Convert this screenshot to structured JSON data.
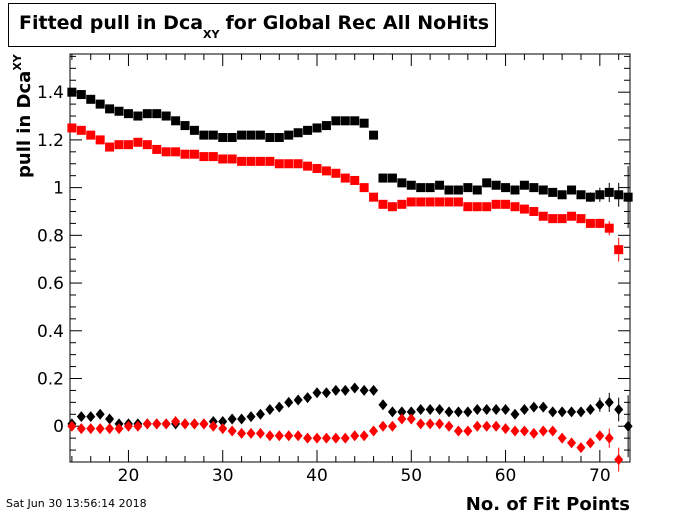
{
  "title": {
    "main": "Fitted pull in Dca",
    "sub": "XY",
    "rest": "for Global Rec All NoHits"
  },
  "timestamp": "Sat Jun 30 13:56:14 2018",
  "chart_data": {
    "type": "scatter",
    "title": "Fitted pull in Dca_XY for Global Rec All NoHits",
    "xlabel": "No. of Fit Points",
    "ylabel": "pull in Dca_XY",
    "xlim": [
      13.8,
      73.2
    ],
    "ylim": [
      -0.15,
      1.56
    ],
    "x_ticks": [
      20,
      30,
      40,
      50,
      60,
      70
    ],
    "y_ticks": [
      0,
      0.2,
      0.4,
      0.6,
      0.8,
      1,
      1.2,
      1.4
    ],
    "grid": false,
    "series": [
      {
        "marker": "square",
        "color": "#000000",
        "x": [
          14,
          15,
          16,
          17,
          18,
          19,
          20,
          21,
          22,
          23,
          24,
          25,
          26,
          27,
          28,
          29,
          30,
          31,
          32,
          33,
          34,
          35,
          36,
          37,
          38,
          39,
          40,
          41,
          42,
          43,
          44,
          45,
          46,
          47,
          48,
          49,
          50,
          51,
          52,
          53,
          54,
          55,
          56,
          57,
          58,
          59,
          60,
          61,
          62,
          63,
          64,
          65,
          66,
          67,
          68,
          69,
          70,
          71,
          72,
          73
        ],
        "y": [
          1.4,
          1.39,
          1.37,
          1.35,
          1.33,
          1.32,
          1.31,
          1.3,
          1.31,
          1.31,
          1.3,
          1.28,
          1.26,
          1.24,
          1.22,
          1.22,
          1.21,
          1.21,
          1.22,
          1.22,
          1.22,
          1.21,
          1.21,
          1.22,
          1.23,
          1.24,
          1.25,
          1.26,
          1.28,
          1.28,
          1.28,
          1.27,
          1.22,
          1.04,
          1.04,
          1.02,
          1.01,
          1.0,
          1.0,
          1.01,
          0.99,
          0.99,
          1.0,
          0.99,
          1.02,
          1.01,
          1.0,
          0.99,
          1.01,
          1.0,
          0.99,
          0.98,
          0.97,
          0.99,
          0.97,
          0.96,
          0.97,
          0.98,
          0.97,
          0.96
        ],
        "err": [
          0,
          0,
          0,
          0,
          0,
          0,
          0,
          0,
          0,
          0,
          0,
          0,
          0,
          0,
          0,
          0,
          0,
          0,
          0,
          0,
          0,
          0,
          0,
          0,
          0,
          0,
          0,
          0,
          0,
          0,
          0,
          0,
          0,
          0,
          0,
          0,
          0,
          0,
          0,
          0,
          0,
          0,
          0,
          0,
          0,
          0,
          0,
          0,
          0,
          0,
          0,
          0,
          0,
          0.01,
          0.01,
          0.02,
          0.03,
          0.04,
          0.05,
          0.13
        ]
      },
      {
        "marker": "square",
        "color": "#ff0000",
        "x": [
          14,
          15,
          16,
          17,
          18,
          19,
          20,
          21,
          22,
          23,
          24,
          25,
          26,
          27,
          28,
          29,
          30,
          31,
          32,
          33,
          34,
          35,
          36,
          37,
          38,
          39,
          40,
          41,
          42,
          43,
          44,
          45,
          46,
          47,
          48,
          49,
          50,
          51,
          52,
          53,
          54,
          55,
          56,
          57,
          58,
          59,
          60,
          61,
          62,
          63,
          64,
          65,
          66,
          67,
          68,
          69,
          70,
          71,
          72
        ],
        "y": [
          1.25,
          1.24,
          1.22,
          1.2,
          1.17,
          1.18,
          1.18,
          1.19,
          1.18,
          1.16,
          1.15,
          1.15,
          1.14,
          1.14,
          1.13,
          1.13,
          1.12,
          1.12,
          1.11,
          1.11,
          1.11,
          1.11,
          1.1,
          1.1,
          1.1,
          1.09,
          1.08,
          1.07,
          1.06,
          1.04,
          1.03,
          1.0,
          0.96,
          0.93,
          0.92,
          0.93,
          0.94,
          0.94,
          0.94,
          0.94,
          0.94,
          0.94,
          0.92,
          0.92,
          0.92,
          0.93,
          0.93,
          0.92,
          0.91,
          0.9,
          0.88,
          0.87,
          0.87,
          0.88,
          0.87,
          0.85,
          0.85,
          0.83,
          0.74
        ],
        "err": [
          0,
          0,
          0,
          0,
          0,
          0,
          0,
          0,
          0,
          0,
          0,
          0,
          0,
          0,
          0,
          0,
          0,
          0,
          0,
          0,
          0,
          0,
          0,
          0,
          0,
          0,
          0,
          0,
          0,
          0,
          0,
          0,
          0,
          0,
          0,
          0,
          0,
          0,
          0,
          0,
          0,
          0,
          0,
          0,
          0,
          0,
          0,
          0,
          0,
          0,
          0,
          0,
          0,
          0,
          0.01,
          0.01,
          0.02,
          0.03,
          0.05
        ]
      },
      {
        "marker": "diamond",
        "color": "#000000",
        "x": [
          14,
          15,
          16,
          17,
          18,
          19,
          20,
          21,
          22,
          23,
          24,
          25,
          26,
          27,
          28,
          29,
          30,
          31,
          32,
          33,
          34,
          35,
          36,
          37,
          38,
          39,
          40,
          41,
          42,
          43,
          44,
          45,
          46,
          47,
          48,
          49,
          50,
          51,
          52,
          53,
          54,
          55,
          56,
          57,
          58,
          59,
          60,
          61,
          62,
          63,
          64,
          65,
          66,
          67,
          68,
          69,
          70,
          71,
          72,
          73
        ],
        "y": [
          0.01,
          0.04,
          0.04,
          0.05,
          0.03,
          0.01,
          0.01,
          0.01,
          0.01,
          0.01,
          0.01,
          0.01,
          0.01,
          0.01,
          0.01,
          0.02,
          0.02,
          0.03,
          0.03,
          0.04,
          0.05,
          0.07,
          0.08,
          0.1,
          0.11,
          0.12,
          0.14,
          0.14,
          0.15,
          0.15,
          0.16,
          0.15,
          0.15,
          0.09,
          0.06,
          0.06,
          0.06,
          0.07,
          0.07,
          0.07,
          0.06,
          0.06,
          0.06,
          0.07,
          0.07,
          0.07,
          0.07,
          0.05,
          0.07,
          0.08,
          0.08,
          0.06,
          0.06,
          0.06,
          0.06,
          0.07,
          0.09,
          0.1,
          0.07,
          0.0
        ],
        "err": [
          0,
          0,
          0,
          0,
          0,
          0,
          0,
          0,
          0,
          0,
          0,
          0,
          0,
          0,
          0,
          0,
          0,
          0,
          0,
          0,
          0,
          0,
          0,
          0,
          0,
          0,
          0,
          0,
          0,
          0,
          0,
          0,
          0,
          0,
          0,
          0,
          0,
          0,
          0,
          0,
          0,
          0,
          0,
          0,
          0,
          0,
          0,
          0,
          0,
          0,
          0,
          0,
          0,
          0.01,
          0.01,
          0.02,
          0.03,
          0.04,
          0.05,
          0.13
        ]
      },
      {
        "marker": "diamond",
        "color": "#ff0000",
        "x": [
          14,
          15,
          16,
          17,
          18,
          19,
          20,
          21,
          22,
          23,
          24,
          25,
          26,
          27,
          28,
          29,
          30,
          31,
          32,
          33,
          34,
          35,
          36,
          37,
          38,
          39,
          40,
          41,
          42,
          43,
          44,
          45,
          46,
          47,
          48,
          49,
          50,
          51,
          52,
          53,
          54,
          55,
          56,
          57,
          58,
          59,
          60,
          61,
          62,
          63,
          64,
          65,
          66,
          67,
          68,
          69,
          70,
          71,
          72
        ],
        "y": [
          0.0,
          -0.01,
          -0.01,
          -0.01,
          -0.01,
          -0.01,
          0.0,
          0.0,
          0.01,
          0.01,
          0.01,
          0.02,
          0.01,
          0.01,
          0.01,
          0.0,
          -0.01,
          -0.02,
          -0.03,
          -0.03,
          -0.03,
          -0.04,
          -0.04,
          -0.04,
          -0.04,
          -0.05,
          -0.05,
          -0.05,
          -0.05,
          -0.05,
          -0.04,
          -0.04,
          -0.02,
          0.0,
          0.0,
          0.03,
          0.03,
          0.01,
          0.01,
          0.01,
          0.0,
          -0.02,
          -0.02,
          0.0,
          0.0,
          0.0,
          -0.01,
          -0.02,
          -0.02,
          -0.03,
          -0.02,
          -0.02,
          -0.05,
          -0.07,
          -0.09,
          -0.07,
          -0.04,
          -0.05,
          -0.14
        ],
        "err": [
          0,
          0,
          0,
          0,
          0,
          0,
          0,
          0,
          0,
          0,
          0,
          0,
          0,
          0,
          0,
          0,
          0,
          0,
          0,
          0,
          0,
          0,
          0,
          0,
          0,
          0,
          0,
          0,
          0,
          0,
          0,
          0,
          0,
          0,
          0,
          0,
          0,
          0,
          0,
          0,
          0,
          0,
          0,
          0,
          0,
          0,
          0,
          0,
          0,
          0,
          0,
          0,
          0,
          0,
          0.01,
          0.01,
          0.02,
          0.04,
          0.05
        ]
      }
    ]
  }
}
